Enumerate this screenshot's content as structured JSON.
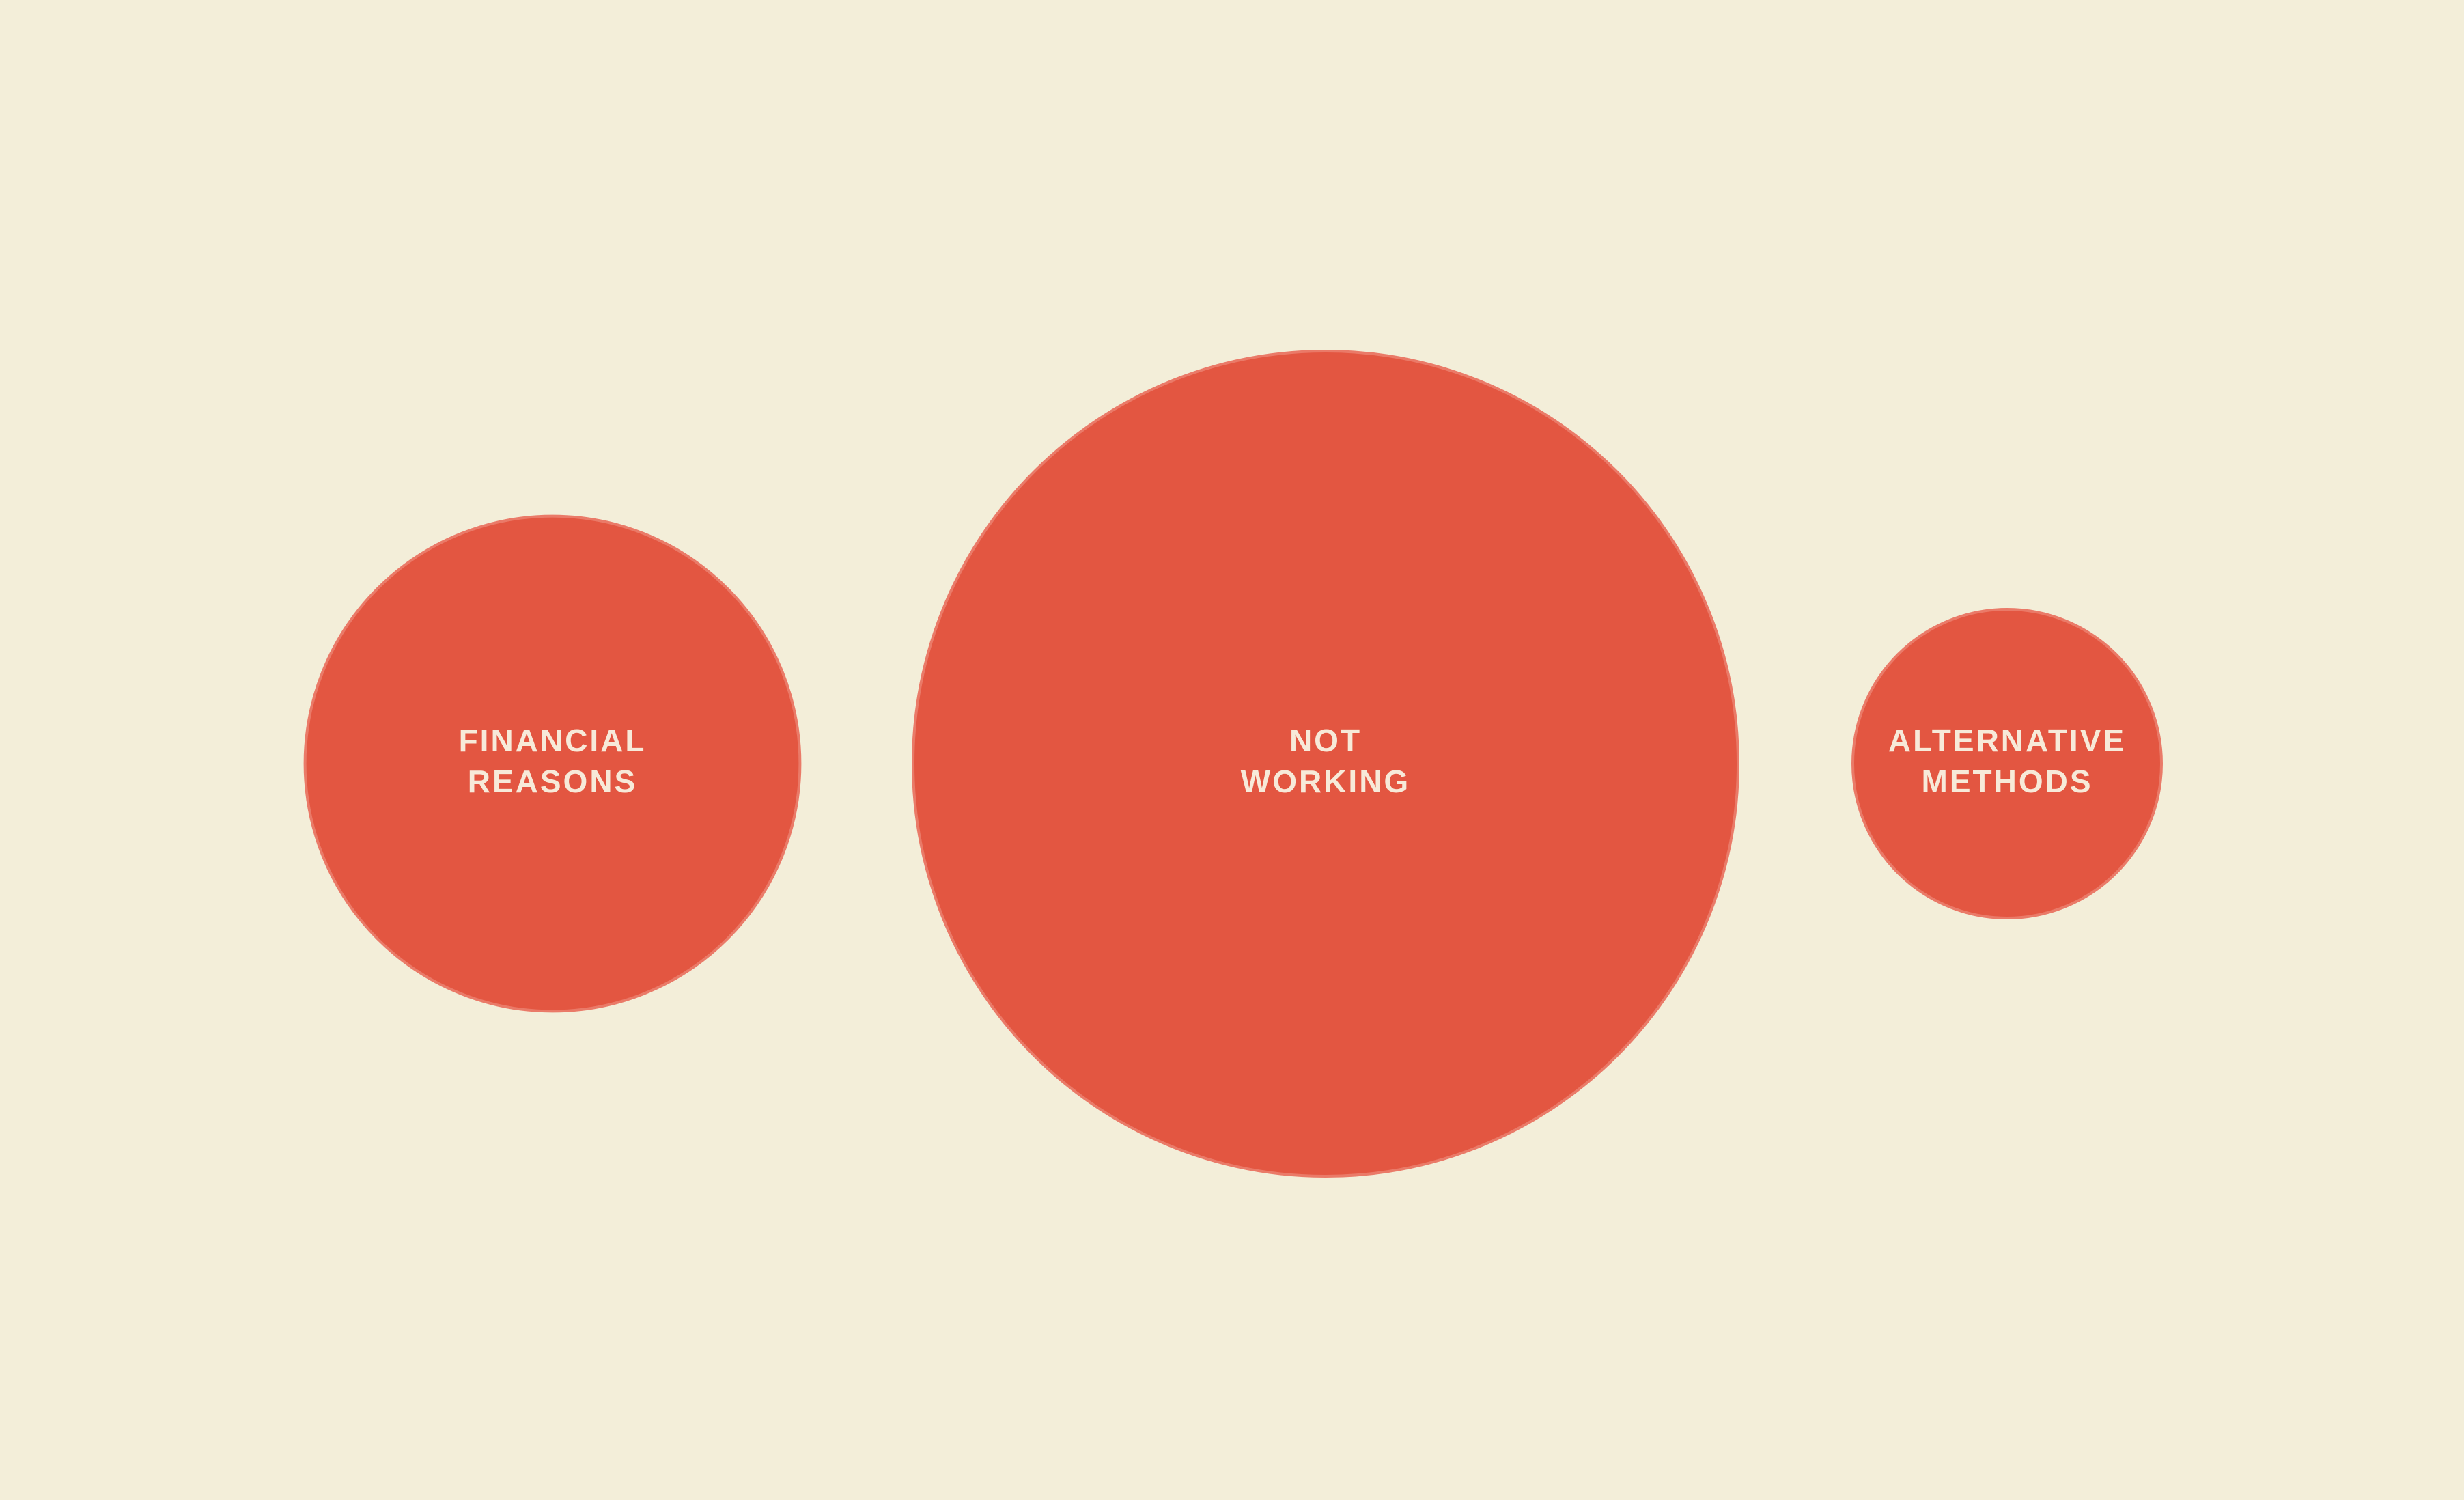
{
  "chart_data": {
    "type": "bubble",
    "title": "",
    "series": [
      {
        "label_lines": [
          "FINANCIAL",
          "REASONS"
        ],
        "value": 36
      },
      {
        "label_lines": [
          "NOT",
          "WORKING"
        ],
        "value": 100
      },
      {
        "label_lines": [
          "ALTERNATIVE",
          "METHODS"
        ],
        "value": 14
      }
    ]
  },
  "colors": {
    "background": "#f3eed9",
    "bubble_fill": "#e35641",
    "bubble_stroke": "#ea7a68",
    "label_text": "#f7ead9"
  }
}
